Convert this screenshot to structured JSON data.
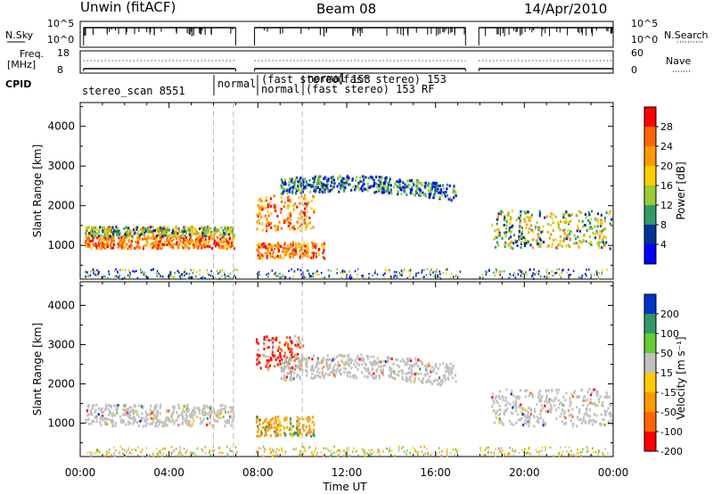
{
  "header": {
    "station": "Unwin (fitACF)",
    "beam": "Beam 08",
    "date": "14/Apr/2010"
  },
  "strip_labels": {
    "nsky": "N.Sky",
    "nsearch": "N.Search",
    "freq_line1": "Freq.",
    "freq_line2": "[MHz]",
    "nave": "Nave",
    "cpid": "CPID",
    "nsky_ticks": [
      "10^5",
      "10^0"
    ],
    "nsearch_ticks": [
      "10^5",
      "10^0"
    ],
    "freq_ticks": [
      "18",
      "8"
    ],
    "nave_ticks": [
      "60",
      "0"
    ]
  },
  "cpid_labels": [
    "stereo_scan 8551",
    "normal",
    "(fast stereo) 153",
    "normal",
    "(fast stereo) 153 RF",
    "normal",
    "(fast stereo) 153"
  ],
  "legend_power": {
    "label": "Power [dB]",
    "ticks": [
      "28",
      "24",
      "20",
      "16",
      "12",
      "8",
      "4"
    ],
    "colors": [
      "#ff0000",
      "#ff6600",
      "#ff9900",
      "#ffcc00",
      "#99cc33",
      "#339966",
      "#003399",
      "#0000ff"
    ]
  },
  "legend_velocity": {
    "label": "Velocity [m s⁻¹]",
    "ticks": [
      "200",
      "100",
      "50",
      "15",
      "-15",
      "-50",
      "-100",
      "-200"
    ],
    "colors": [
      "#0033cc",
      "#339966",
      "#66cc33",
      "#c0c0c0",
      "#ffcc00",
      "#ff9900",
      "#ff6600",
      "#ff0000"
    ]
  },
  "chart_data": [
    {
      "type": "heatmap",
      "panel": "power",
      "ylabel": "Slant Range [km]",
      "xlabel": "",
      "x_ticks": [
        "00:00",
        "04:00",
        "08:00",
        "12:00",
        "16:00",
        "20:00",
        "00:00"
      ],
      "y_ticks": [
        1000,
        2000,
        3000,
        4000
      ],
      "xlim_hours": [
        0,
        24
      ],
      "ylim_km": [
        150,
        4600
      ],
      "colorbar": "Power [dB]",
      "data_gaps_hours": [
        [
          7.05,
          7.85
        ],
        [
          17.35,
          17.95
        ]
      ],
      "features": [
        {
          "t0": 0.2,
          "t1": 6.9,
          "r0": 950,
          "r1": 1250,
          "level": "high"
        },
        {
          "t0": 0.2,
          "t1": 6.9,
          "r0": 1250,
          "r1": 1500,
          "level": "mid"
        },
        {
          "t0": 7.9,
          "t1": 11.0,
          "r0": 700,
          "r1": 1100,
          "level": "high"
        },
        {
          "t0": 7.9,
          "t1": 10.5,
          "r0": 1400,
          "r1": 2300,
          "level": "high"
        },
        {
          "t0": 9.0,
          "t1": 16.9,
          "r0": 2300,
          "r1": 2700,
          "level": "low"
        },
        {
          "t0": 18.5,
          "t1": 23.9,
          "r0": 950,
          "r1": 1900,
          "level": "mid"
        }
      ]
    },
    {
      "type": "heatmap",
      "panel": "velocity",
      "ylabel": "Slant Range [km]",
      "xlabel": "Time UT",
      "x_ticks": [
        "00:00",
        "04:00",
        "08:00",
        "12:00",
        "16:00",
        "20:00",
        "00:00"
      ],
      "y_ticks": [
        1000,
        2000,
        3000,
        4000
      ],
      "xlim_hours": [
        0,
        24
      ],
      "ylim_km": [
        150,
        4600
      ],
      "colorbar": "Velocity [m s⁻¹]",
      "data_gaps_hours": [
        [
          7.05,
          7.85
        ],
        [
          17.35,
          17.95
        ]
      ],
      "features": [
        {
          "t0": 0.2,
          "t1": 6.9,
          "r0": 950,
          "r1": 1500,
          "level": "ground"
        },
        {
          "t0": 7.9,
          "t1": 10.5,
          "r0": 700,
          "r1": 1200,
          "level": "negative"
        },
        {
          "t0": 7.9,
          "t1": 10.0,
          "r0": 2400,
          "r1": 3250,
          "level": "strong-negative"
        },
        {
          "t0": 9.0,
          "t1": 16.9,
          "r0": 2100,
          "r1": 2700,
          "level": "ground"
        },
        {
          "t0": 18.5,
          "t1": 23.9,
          "r0": 950,
          "r1": 1900,
          "level": "ground"
        }
      ]
    }
  ]
}
